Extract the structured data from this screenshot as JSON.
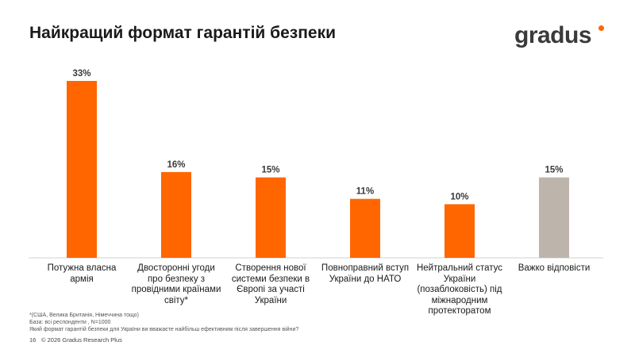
{
  "header": {
    "title": "Найкращий формат гарантій безпеки",
    "logo_text": "gradus"
  },
  "colors": {
    "primary": "#FF6600",
    "neutral": "#BDB5AC",
    "logo_dot": "#FF6600"
  },
  "chart_data": {
    "type": "bar",
    "title": "Найкращий формат гарантій безпеки",
    "categories": [
      "Потужна власна армія",
      "Двосторонні угоди про безпеку з провідними країнами світу*",
      "Створення нової системи безпеки в Європі за участі України",
      "Повноправний вступ України до НАТО",
      "Нейтральний статус України (позаблоковість) під міжнародним протекторатом",
      "Важко відповісти"
    ],
    "values": [
      33,
      16,
      15,
      11,
      10,
      15
    ],
    "value_labels": [
      "33%",
      "16%",
      "15%",
      "11%",
      "10%",
      "15%"
    ],
    "bar_colors": [
      "#FF6600",
      "#FF6600",
      "#FF6600",
      "#FF6600",
      "#FF6600",
      "#BDB5AC"
    ],
    "unit": "%",
    "xlabel": "",
    "ylabel": "",
    "ylim": [
      0,
      33
    ],
    "grid": false,
    "legend": "none"
  },
  "footnotes": {
    "note": "*(США, Велика Британія, Німеччина тощо)",
    "base": "База: всі респонденти , N=1000",
    "question": "Який формат гарантій безпеки для України ви вважаєте найбільш ефективним після завершення війни?"
  },
  "footer": {
    "page_number": "16",
    "copyright": "© 2026 Gradus Research Plus"
  }
}
